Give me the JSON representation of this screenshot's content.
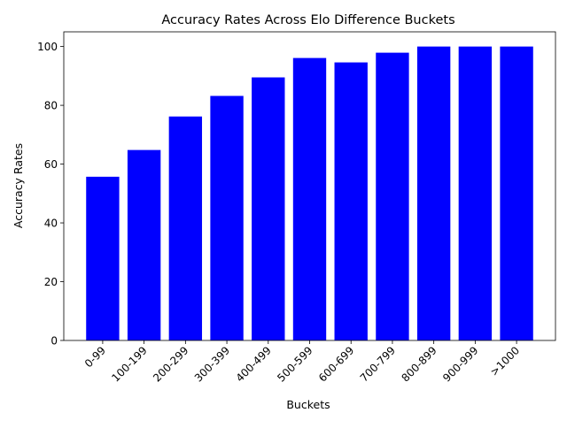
{
  "chart_data": {
    "type": "bar",
    "title": "Accuracy Rates Across Elo Difference Buckets",
    "xlabel": "Buckets",
    "ylabel": "Accuracy Rates",
    "categories": [
      "0-99",
      "100-199",
      "200-299",
      "300-399",
      "400-499",
      "500-599",
      "600-699",
      "700-799",
      "800-899",
      "900-999",
      ">1000"
    ],
    "values": [
      55.7,
      64.8,
      76.2,
      83.2,
      89.5,
      96.1,
      94.6,
      97.9,
      100,
      100,
      100
    ],
    "ylim": [
      0,
      105
    ],
    "yticks": [
      0,
      20,
      40,
      60,
      80,
      100
    ],
    "bar_color": "#0000ff",
    "grid": false,
    "legend": false
  }
}
